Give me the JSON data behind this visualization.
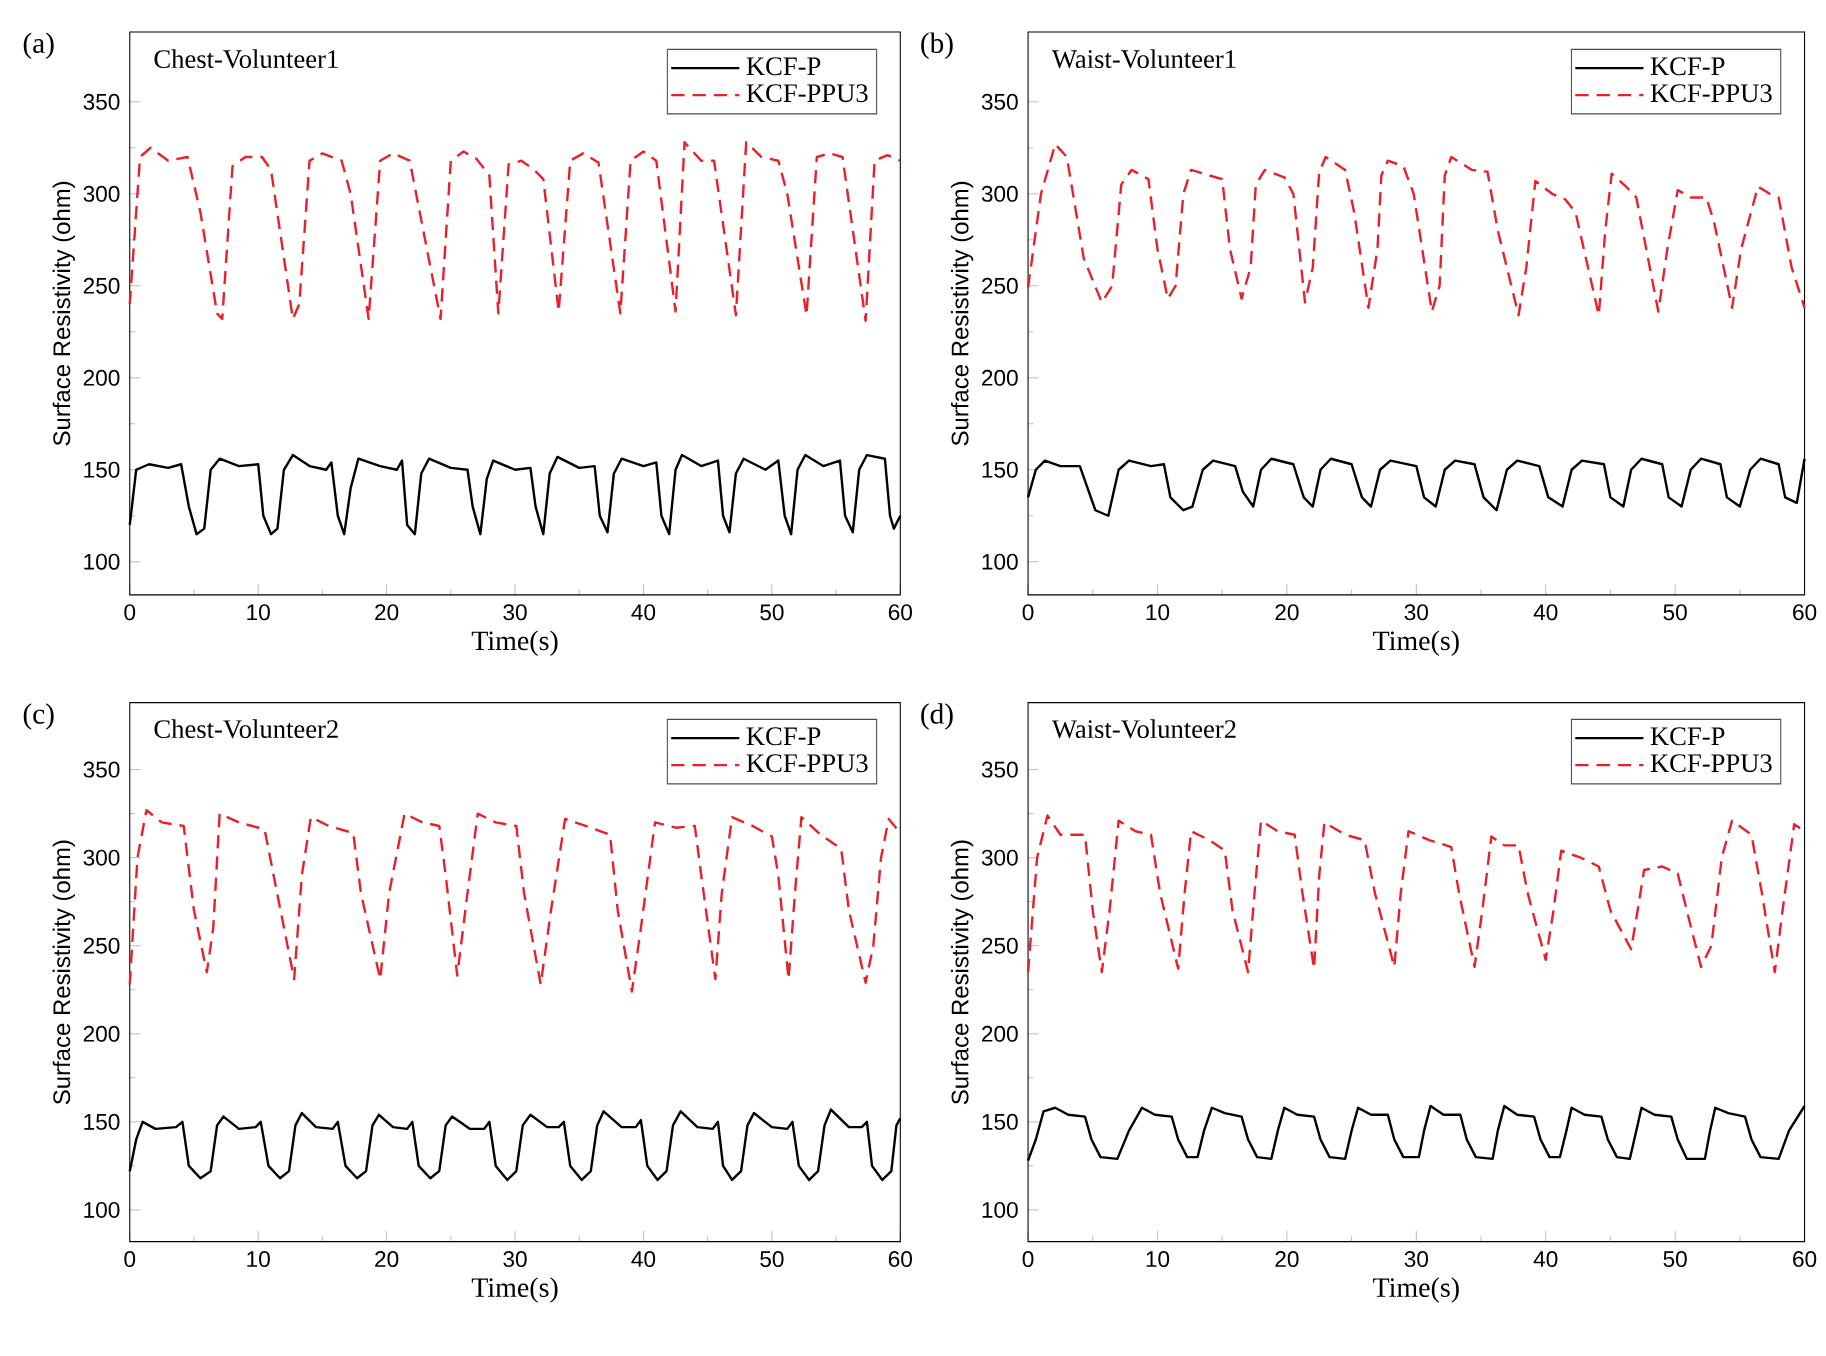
{
  "chart_data": [
    {
      "type": "line",
      "annotations": [
        "(a)",
        "Chest-Volunteer1"
      ],
      "xlabel": "Time(s)",
      "ylabel": "Surface Resistivity (ohm)",
      "xlim": [
        0,
        60
      ],
      "ylim": [
        82,
        388
      ],
      "xticks": [
        0,
        10,
        20,
        30,
        40,
        50,
        60
      ],
      "yticks": [
        100,
        150,
        200,
        250,
        300,
        350
      ],
      "legend": "top right",
      "series": [
        {
          "name": "KCF-P",
          "color": "#000000",
          "line_style": "solid",
          "x": [
            0,
            0.5,
            1.5,
            3,
            4,
            4.6,
            5.2,
            5.8,
            6.3,
            7,
            8.5,
            10,
            10.4,
            11,
            11.5,
            12,
            12.7,
            14,
            15.3,
            15.7,
            16.2,
            16.7,
            17.2,
            17.8,
            19.5,
            20.8,
            21.2,
            21.6,
            22.2,
            22.7,
            23.3,
            25,
            26.3,
            26.7,
            27.3,
            27.8,
            28.3,
            30,
            31.2,
            31.6,
            32.2,
            32.7,
            33.3,
            35,
            36.2,
            36.6,
            37.2,
            37.7,
            38.3,
            40,
            41,
            41.4,
            42,
            42.5,
            43,
            44.5,
            45.8,
            46.2,
            46.7,
            47.2,
            47.8,
            49.5,
            50.5,
            51,
            51.5,
            52,
            52.6,
            54,
            55.3,
            55.7,
            56.3,
            56.8,
            57.4,
            58.8,
            59.2,
            59.5,
            60
          ],
          "values": [
            120,
            150,
            153,
            151,
            153,
            130,
            115,
            118,
            150,
            156,
            152,
            153,
            125,
            115,
            118,
            150,
            158,
            152,
            150,
            154,
            125,
            115,
            140,
            156,
            152,
            150,
            155,
            120,
            115,
            148,
            156,
            151,
            150,
            130,
            115,
            145,
            155,
            150,
            151,
            130,
            115,
            148,
            157,
            151,
            152,
            125,
            116,
            148,
            156,
            152,
            154,
            125,
            115,
            150,
            158,
            152,
            155,
            125,
            116,
            148,
            156,
            150,
            155,
            125,
            115,
            150,
            158,
            152,
            155,
            125,
            116,
            150,
            158,
            156,
            125,
            118,
            125
          ]
        },
        {
          "name": "KCF-PPU3",
          "color": "#e8202a",
          "line_style": "dashed",
          "x": [
            0,
            0.8,
            1.6,
            3,
            4.5,
            5.5,
            6.8,
            7.2,
            8,
            9,
            10.3,
            11,
            12.7,
            13.2,
            14,
            15,
            16.5,
            17.2,
            18.6,
            19.5,
            20.5,
            21.8,
            22.3,
            24.2,
            25,
            26,
            27,
            28,
            28.7,
            29.5,
            30.5,
            31.5,
            32.2,
            33.4,
            34.3,
            35.3,
            36.5,
            38.2,
            39,
            40,
            41,
            42.5,
            43.2,
            44.5,
            45.5,
            47.2,
            48,
            49.2,
            50.5,
            51.2,
            52.7,
            53.5,
            54.5,
            55.5,
            57.3,
            58,
            59,
            60
          ],
          "values": [
            240,
            320,
            325,
            318,
            320,
            290,
            235,
            232,
            315,
            320,
            320,
            313,
            232,
            240,
            318,
            322,
            318,
            300,
            232,
            318,
            322,
            318,
            300,
            232,
            318,
            323,
            319,
            310,
            235,
            316,
            318,
            313,
            308,
            236,
            318,
            322,
            317,
            235,
            318,
            323,
            318,
            236,
            328,
            318,
            318,
            234,
            328,
            320,
            318,
            300,
            234,
            320,
            322,
            320,
            231,
            318,
            321,
            318
          ]
        }
      ]
    },
    {
      "type": "line",
      "annotations": [
        "(b)",
        "Waist-Volunteer1"
      ],
      "xlabel": "Time(s)",
      "ylabel": "Surface Resistivity (ohm)",
      "xlim": [
        0,
        60
      ],
      "ylim": [
        82,
        388
      ],
      "xticks": [
        0,
        10,
        20,
        30,
        40,
        50,
        60
      ],
      "yticks": [
        100,
        150,
        200,
        250,
        300,
        350
      ],
      "legend": "top right",
      "series": [
        {
          "name": "KCF-P",
          "color": "#000000",
          "line_style": "solid",
          "x": [
            0,
            0.6,
            1.3,
            2.5,
            4,
            4.6,
            5.2,
            6.2,
            7,
            7.8,
            9.5,
            10.5,
            11,
            12,
            12.7,
            13.5,
            14.3,
            16,
            16.6,
            17.4,
            18,
            18.8,
            20.5,
            21.3,
            22,
            22.6,
            23.4,
            25,
            25.8,
            26.5,
            27.2,
            28,
            30,
            30.6,
            31.5,
            32.2,
            33,
            34.5,
            35.2,
            36.2,
            37,
            37.8,
            39.5,
            40.2,
            41.3,
            42,
            42.8,
            44.5,
            45,
            46,
            46.6,
            47.4,
            49,
            49.5,
            50.5,
            51.2,
            52,
            53.5,
            54,
            55,
            55.8,
            56.6,
            58,
            58.5,
            59.4,
            60
          ],
          "values": [
            135,
            150,
            155,
            152,
            152,
            140,
            128,
            125,
            150,
            155,
            152,
            153,
            135,
            128,
            130,
            150,
            155,
            152,
            138,
            130,
            150,
            156,
            153,
            135,
            130,
            150,
            156,
            153,
            135,
            130,
            150,
            155,
            152,
            135,
            130,
            150,
            155,
            153,
            135,
            128,
            150,
            155,
            152,
            135,
            130,
            150,
            155,
            153,
            135,
            130,
            150,
            156,
            153,
            135,
            130,
            150,
            156,
            153,
            135,
            130,
            150,
            156,
            153,
            135,
            132,
            156
          ]
        },
        {
          "name": "KCF-PPU3",
          "color": "#e8202a",
          "line_style": "dashed",
          "x": [
            0,
            1,
            2.1,
            3,
            4.3,
            5.7,
            6.5,
            7.2,
            8,
            9.3,
            10,
            10.8,
            11.4,
            12,
            12.6,
            14,
            15,
            15.6,
            16.5,
            17.2,
            17.6,
            18.3,
            19.8,
            20.5,
            21.4,
            22,
            22.5,
            23,
            24.5,
            25.2,
            26.3,
            27,
            27.3,
            27.8,
            29,
            29.8,
            31.2,
            31.8,
            32.2,
            32.7,
            34.3,
            35.5,
            36.3,
            37.9,
            38.5,
            39.2,
            40.5,
            41.5,
            42.3,
            44.1,
            44.6,
            45.1,
            46.2,
            47,
            48.7,
            49.4,
            50.2,
            51.2,
            52.4,
            53,
            54.4,
            55.1,
            56.4,
            57.3,
            58,
            59,
            60
          ],
          "values": [
            249,
            300,
            327,
            320,
            265,
            241,
            250,
            305,
            313,
            308,
            270,
            243,
            250,
            300,
            313,
            310,
            308,
            270,
            243,
            260,
            305,
            313,
            309,
            300,
            241,
            260,
            312,
            320,
            313,
            290,
            238,
            270,
            310,
            318,
            315,
            300,
            236,
            250,
            310,
            320,
            313,
            312,
            280,
            234,
            260,
            307,
            300,
            297,
            290,
            234,
            280,
            311,
            304,
            298,
            236,
            270,
            302,
            298,
            298,
            285,
            238,
            270,
            304,
            300,
            298,
            260,
            238
          ]
        }
      ]
    },
    {
      "type": "line",
      "annotations": [
        "(c)",
        "Chest-Volunteer2"
      ],
      "xlabel": "Time(s)",
      "ylabel": "Surface Resistivity (ohm)",
      "xlim": [
        0,
        60
      ],
      "ylim": [
        82,
        388
      ],
      "xticks": [
        0,
        10,
        20,
        30,
        40,
        50,
        60
      ],
      "yticks": [
        100,
        150,
        200,
        250,
        300,
        350
      ],
      "legend": "top right",
      "series": [
        {
          "name": "KCF-P",
          "color": "#000000",
          "line_style": "solid",
          "x": [
            0,
            0.5,
            1,
            2,
            3.6,
            4.1,
            4.6,
            5.5,
            6.3,
            6.8,
            7.3,
            8.5,
            9.8,
            10.2,
            10.8,
            11.7,
            12.4,
            12.9,
            13.4,
            14.5,
            15.8,
            16.2,
            16.8,
            17.7,
            18.4,
            18.9,
            19.4,
            20.5,
            21.6,
            22,
            22.5,
            23.4,
            24.1,
            24.6,
            25.1,
            26.5,
            27.6,
            28,
            28.5,
            29.4,
            30.1,
            30.6,
            31.2,
            32.5,
            33.4,
            33.8,
            34.3,
            35.2,
            35.9,
            36.4,
            36.9,
            38.3,
            39.4,
            39.8,
            40.3,
            41.1,
            41.8,
            42.3,
            42.9,
            44.2,
            45.4,
            45.8,
            46.2,
            46.9,
            47.6,
            48.1,
            48.6,
            50,
            51.2,
            51.6,
            52.1,
            52.9,
            53.6,
            54.1,
            54.6,
            56,
            57,
            57.4,
            57.8,
            58.6,
            59.3,
            59.7,
            60
          ],
          "values": [
            122,
            140,
            150,
            146,
            147,
            150,
            125,
            118,
            122,
            148,
            153,
            146,
            147,
            150,
            125,
            118,
            122,
            148,
            155,
            147,
            146,
            150,
            125,
            118,
            122,
            148,
            154,
            147,
            146,
            150,
            125,
            118,
            122,
            148,
            153,
            146,
            146,
            150,
            125,
            117,
            122,
            148,
            154,
            147,
            147,
            150,
            125,
            117,
            122,
            148,
            156,
            147,
            147,
            151,
            125,
            117,
            122,
            148,
            156,
            147,
            146,
            150,
            125,
            117,
            122,
            148,
            155,
            147,
            146,
            150,
            125,
            117,
            122,
            148,
            157,
            147,
            147,
            150,
            125,
            117,
            122,
            148,
            152
          ]
        },
        {
          "name": "KCF-PPU3",
          "color": "#e8202a",
          "line_style": "dashed",
          "x": [
            0,
            0.6,
            1.3,
            2.5,
            4.2,
            5,
            6,
            6.5,
            7,
            8.5,
            10.5,
            11.2,
            12.8,
            13.4,
            14.1,
            15.5,
            17.4,
            18,
            19.5,
            20.2,
            21.4,
            22.8,
            24.1,
            24.6,
            25.5,
            26.3,
            27.1,
            28.5,
            30.1,
            30.7,
            32,
            32.8,
            33.9,
            35.5,
            37.4,
            38,
            39.1,
            39.8,
            40.9,
            42.5,
            44,
            44.5,
            45.6,
            46.1,
            46.9,
            48.5,
            50,
            50.5,
            51.3,
            51.8,
            52.3,
            53.8,
            55.4,
            56,
            57.3,
            57.9,
            58.5,
            59.1,
            60
          ],
          "values": [
            228,
            300,
            327,
            320,
            318,
            270,
            235,
            260,
            325,
            320,
            316,
            290,
            231,
            290,
            323,
            318,
            314,
            280,
            231,
            280,
            325,
            320,
            318,
            290,
            233,
            280,
            325,
            320,
            318,
            280,
            228,
            270,
            322,
            318,
            313,
            270,
            224,
            260,
            320,
            317,
            318,
            290,
            231,
            280,
            323,
            318,
            312,
            290,
            231,
            280,
            323,
            313,
            305,
            270,
            229,
            250,
            300,
            322,
            314
          ]
        }
      ]
    },
    {
      "type": "line",
      "annotations": [
        "(d)",
        "Waist-Volunteer2"
      ],
      "xlabel": "Time(s)",
      "ylabel": "Surface Resistivity (ohm)",
      "xlim": [
        0,
        60
      ],
      "ylim": [
        82,
        388
      ],
      "xticks": [
        0,
        10,
        20,
        30,
        40,
        50,
        60
      ],
      "yticks": [
        100,
        150,
        200,
        250,
        300,
        350
      ],
      "legend": "top right",
      "series": [
        {
          "name": "KCF-P",
          "color": "#000000",
          "line_style": "solid",
          "x": [
            0,
            0.6,
            1.2,
            2.1,
            3.1,
            4.4,
            4.9,
            5.6,
            6.9,
            7.8,
            8.8,
            9.8,
            11.1,
            11.6,
            12.3,
            13.1,
            13.6,
            14.2,
            15.2,
            16.5,
            17,
            17.7,
            18.8,
            19.3,
            19.8,
            20.8,
            22.1,
            22.6,
            23.3,
            24.5,
            25,
            25.5,
            26.5,
            27.8,
            28.3,
            29,
            30.2,
            30.6,
            31.1,
            32.1,
            33.4,
            33.9,
            34.6,
            35.9,
            36.3,
            36.8,
            37.8,
            39.1,
            39.6,
            40.3,
            41.1,
            41.6,
            42,
            43,
            44.3,
            44.8,
            45.5,
            46.5,
            47,
            47.4,
            48.4,
            49.7,
            50.2,
            50.9,
            52.3,
            52.7,
            53.1,
            54.1,
            55.4,
            55.9,
            56.6,
            58,
            58.8,
            60
          ],
          "values": [
            128,
            140,
            156,
            158,
            154,
            153,
            140,
            130,
            129,
            145,
            158,
            154,
            153,
            140,
            130,
            130,
            145,
            158,
            155,
            153,
            140,
            130,
            129,
            145,
            158,
            154,
            153,
            140,
            130,
            129,
            145,
            158,
            154,
            154,
            140,
            130,
            130,
            145,
            159,
            154,
            154,
            140,
            130,
            129,
            145,
            159,
            154,
            153,
            140,
            130,
            130,
            145,
            158,
            154,
            153,
            140,
            130,
            129,
            145,
            158,
            154,
            153,
            140,
            129,
            129,
            145,
            158,
            155,
            153,
            140,
            130,
            129,
            145,
            159
          ]
        },
        {
          "name": "KCF-PPU3",
          "color": "#e8202a",
          "line_style": "dashed",
          "x": [
            0,
            0.7,
            1.5,
            2.5,
            4.4,
            5,
            5.7,
            6.3,
            7,
            8.3,
            9.5,
            10.2,
            11.6,
            12.1,
            12.6,
            14,
            15.2,
            15.8,
            17,
            17.5,
            18,
            19.3,
            20.6,
            21.2,
            22.1,
            22.5,
            22.9,
            24.5,
            26,
            26.8,
            28.3,
            28.8,
            29.4,
            31,
            32.7,
            33.3,
            34.5,
            35.1,
            35.8,
            36.8,
            37.9,
            38.6,
            40,
            40.6,
            41.2,
            42.7,
            44.1,
            45,
            46.6,
            47.1,
            47.6,
            49,
            50.2,
            50.9,
            52,
            52.8,
            53.6,
            54.4,
            55.9,
            56.7,
            57.7,
            58.3,
            59.2,
            60
          ],
          "values": [
            235,
            300,
            324,
            313,
            313,
            270,
            235,
            270,
            321,
            315,
            313,
            280,
            237,
            280,
            315,
            310,
            304,
            270,
            235,
            280,
            321,
            315,
            313,
            280,
            237,
            290,
            320,
            313,
            310,
            280,
            238,
            280,
            315,
            310,
            306,
            280,
            238,
            270,
            312,
            307,
            307,
            280,
            242,
            270,
            304,
            300,
            295,
            270,
            248,
            270,
            293,
            295,
            291,
            270,
            238,
            250,
            300,
            321,
            313,
            280,
            235,
            270,
            319,
            315
          ]
        }
      ]
    }
  ]
}
